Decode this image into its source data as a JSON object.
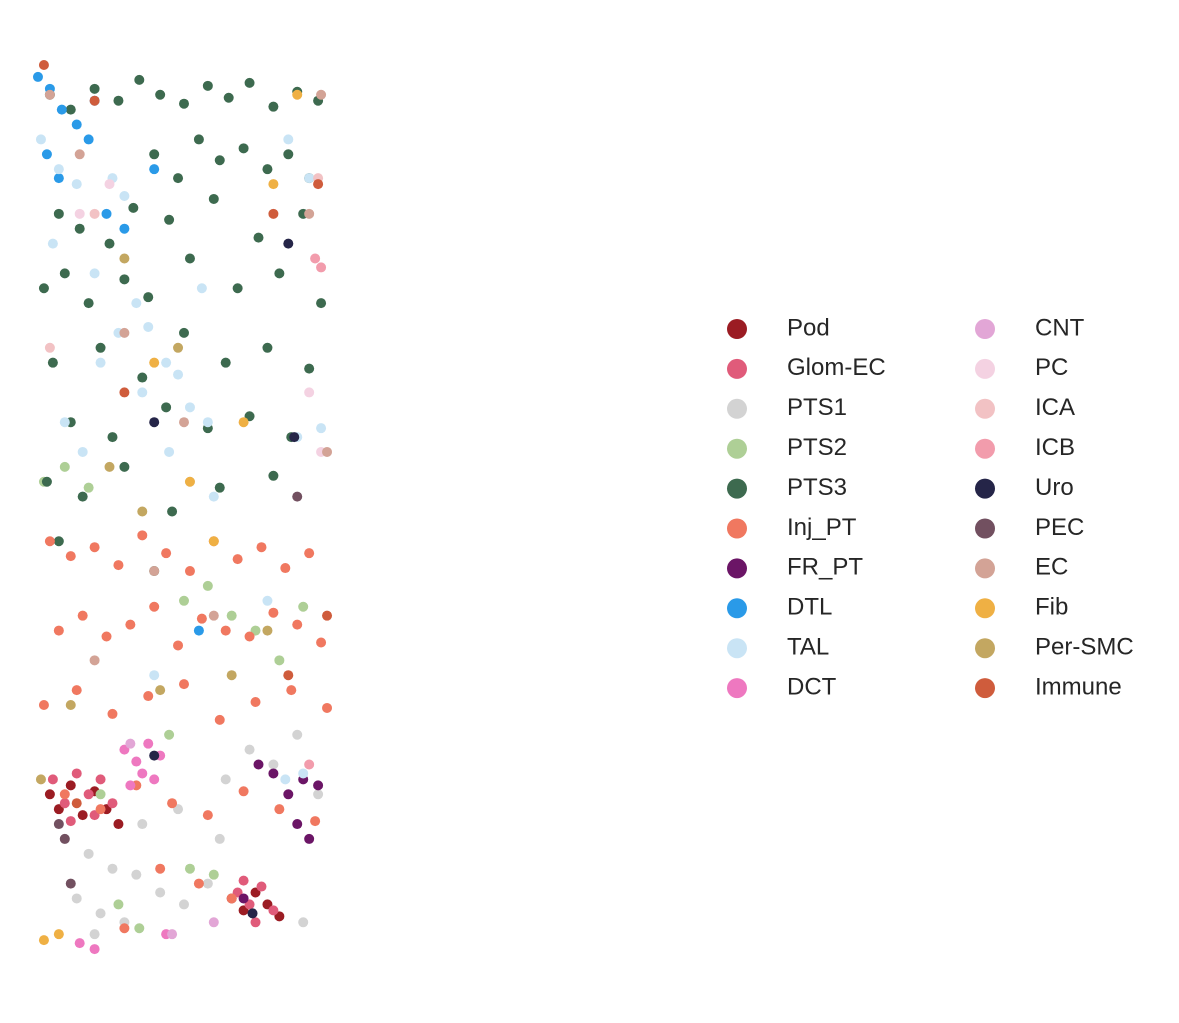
{
  "chart_data": {
    "type": "scatter",
    "xlim": [
      0,
      100
    ],
    "ylim": [
      0,
      300
    ],
    "series": [
      {
        "name": "Pod",
        "color": "#9b1c23",
        "x": [
          5,
          8,
          12,
          16,
          20,
          24,
          28,
          66,
          70,
          74,
          78,
          82
        ],
        "values": [
          55,
          50,
          58,
          48,
          56,
          50,
          45,
          20,
          16,
          22,
          18,
          14
        ]
      },
      {
        "name": "Glom-EC",
        "color": "#e05b7a",
        "x": [
          6,
          10,
          14,
          18,
          22,
          26,
          12,
          20,
          68,
          72,
          76,
          80,
          74,
          70
        ],
        "values": [
          60,
          52,
          62,
          55,
          60,
          52,
          46,
          48,
          22,
          18,
          24,
          16,
          12,
          26
        ]
      },
      {
        "name": "PTS1",
        "color": "#d3d3d3",
        "x": [
          10,
          18,
          26,
          34,
          14,
          22,
          30,
          42,
          50,
          58,
          64,
          72,
          80,
          88,
          95,
          20,
          36,
          48,
          62,
          90
        ],
        "values": [
          40,
          35,
          30,
          28,
          20,
          15,
          12,
          22,
          18,
          25,
          60,
          70,
          65,
          75,
          55,
          8,
          45,
          50,
          40,
          12
        ]
      },
      {
        "name": "PTS2",
        "color": "#aecf96",
        "x": [
          3,
          10,
          18,
          50,
          58,
          66,
          74,
          82,
          90,
          45,
          52,
          60,
          28,
          35,
          22
        ],
        "values": [
          160,
          165,
          158,
          120,
          125,
          115,
          110,
          100,
          118,
          75,
          30,
          28,
          18,
          10,
          55
        ]
      },
      {
        "name": "PTS3",
        "color": "#3d6a4f",
        "x": [
          5,
          12,
          20,
          28,
          35,
          42,
          50,
          58,
          65,
          72,
          80,
          88,
          95,
          40,
          48,
          55,
          62,
          70,
          78,
          85,
          92,
          8,
          15,
          25,
          33,
          45,
          60,
          75,
          90,
          3,
          10,
          18,
          30,
          38,
          52,
          68,
          82,
          96,
          6,
          22,
          36,
          50,
          64,
          78,
          92,
          12,
          26,
          44,
          58,
          72,
          86,
          4,
          16,
          30,
          46,
          62,
          80,
          8,
          40
        ],
        "values": [
          290,
          285,
          292,
          288,
          295,
          290,
          287,
          293,
          289,
          294,
          286,
          291,
          288,
          270,
          262,
          275,
          268,
          272,
          265,
          270,
          262,
          250,
          245,
          240,
          252,
          248,
          255,
          242,
          250,
          225,
          230,
          220,
          228,
          222,
          235,
          225,
          230,
          220,
          200,
          205,
          195,
          210,
          200,
          205,
          198,
          180,
          175,
          185,
          178,
          182,
          175,
          160,
          155,
          165,
          150,
          158,
          162,
          140,
          130
        ]
      },
      {
        "name": "Inj_PT",
        "color": "#f07860",
        "x": [
          5,
          12,
          20,
          28,
          36,
          44,
          52,
          60,
          68,
          76,
          84,
          92,
          8,
          16,
          24,
          32,
          40,
          48,
          56,
          64,
          72,
          80,
          88,
          96,
          3,
          14,
          26,
          38,
          50,
          62,
          74,
          86,
          98,
          10,
          22,
          34,
          46,
          58,
          70,
          82,
          94,
          42,
          55,
          30,
          66
        ],
        "values": [
          140,
          135,
          138,
          132,
          142,
          136,
          130,
          140,
          134,
          138,
          131,
          136,
          110,
          115,
          108,
          112,
          118,
          105,
          114,
          110,
          108,
          116,
          112,
          106,
          85,
          90,
          82,
          88,
          92,
          80,
          86,
          90,
          84,
          55,
          50,
          58,
          52,
          48,
          56,
          50,
          46,
          30,
          25,
          10,
          20
        ]
      },
      {
        "name": "FR_PT",
        "color": "#6b1566",
        "x": [
          75,
          80,
          85,
          90,
          95,
          88,
          70,
          92
        ],
        "values": [
          65,
          62,
          55,
          60,
          58,
          45,
          20,
          40
        ]
      },
      {
        "name": "DTL",
        "color": "#2a9ae8",
        "x": [
          1,
          5,
          9,
          14,
          18,
          4,
          8,
          20,
          24,
          30,
          40,
          55
        ],
        "values": [
          296,
          292,
          285,
          280,
          275,
          270,
          262,
          288,
          250,
          245,
          265,
          110
        ]
      },
      {
        "name": "TAL",
        "color": "#c9e4f5",
        "x": [
          2,
          8,
          14,
          6,
          20,
          26,
          30,
          34,
          38,
          44,
          22,
          28,
          36,
          48,
          56,
          52,
          58,
          10,
          16,
          45,
          52,
          60,
          85,
          92,
          96,
          88,
          78,
          84,
          90,
          40
        ],
        "values": [
          275,
          265,
          260,
          240,
          230,
          262,
          256,
          220,
          212,
          200,
          200,
          210,
          190,
          196,
          225,
          185,
          180,
          180,
          170,
          170,
          160,
          155,
          275,
          262,
          178,
          175,
          120,
          60,
          62,
          95
        ]
      },
      {
        "name": "DCT",
        "color": "#ee78c0",
        "x": [
          30,
          34,
          38,
          42,
          36,
          32,
          40,
          15,
          20,
          44
        ],
        "values": [
          70,
          66,
          72,
          68,
          62,
          58,
          60,
          5,
          3,
          8
        ]
      },
      {
        "name": "CNT",
        "color": "#e2a6d6",
        "x": [
          32,
          46,
          60
        ],
        "values": [
          72,
          8,
          12
        ]
      },
      {
        "name": "PC",
        "color": "#f4d2e2",
        "x": [
          25,
          15,
          92,
          96
        ],
        "values": [
          260,
          250,
          190,
          170
        ]
      },
      {
        "name": "ICA",
        "color": "#f2c2c4",
        "x": [
          5,
          20,
          95
        ],
        "values": [
          205,
          250,
          262
        ]
      },
      {
        "name": "ICB",
        "color": "#f29cac",
        "x": [
          94,
          96,
          92
        ],
        "values": [
          235,
          232,
          65
        ]
      },
      {
        "name": "Uro",
        "color": "#252548",
        "x": [
          85,
          40,
          87,
          40,
          73
        ],
        "values": [
          240,
          180,
          175,
          68,
          15
        ]
      },
      {
        "name": "PEC",
        "color": "#725060",
        "x": [
          8,
          10,
          88,
          12
        ],
        "values": [
          45,
          40,
          155,
          25
        ]
      },
      {
        "name": "EC",
        "color": "#d3a396",
        "x": [
          5,
          15,
          30,
          40,
          50,
          96,
          92,
          98,
          20,
          60
        ],
        "values": [
          290,
          270,
          210,
          130,
          180,
          290,
          250,
          170,
          100,
          115
        ]
      },
      {
        "name": "Fib",
        "color": "#efb044",
        "x": [
          40,
          52,
          88,
          60,
          70,
          80,
          3,
          8
        ],
        "values": [
          200,
          160,
          290,
          140,
          180,
          260,
          6,
          8
        ]
      },
      {
        "name": "Per-SMC",
        "color": "#c3a761",
        "x": [
          30,
          48,
          25,
          36,
          42,
          12,
          2,
          66,
          78
        ],
        "values": [
          235,
          205,
          165,
          150,
          90,
          85,
          60,
          95,
          110
        ]
      },
      {
        "name": "Immune",
        "color": "#cf5c3c",
        "x": [
          3,
          20,
          95,
          80,
          30,
          85,
          98,
          14
        ],
        "values": [
          300,
          288,
          260,
          250,
          190,
          95,
          115,
          52
        ]
      }
    ]
  }
}
